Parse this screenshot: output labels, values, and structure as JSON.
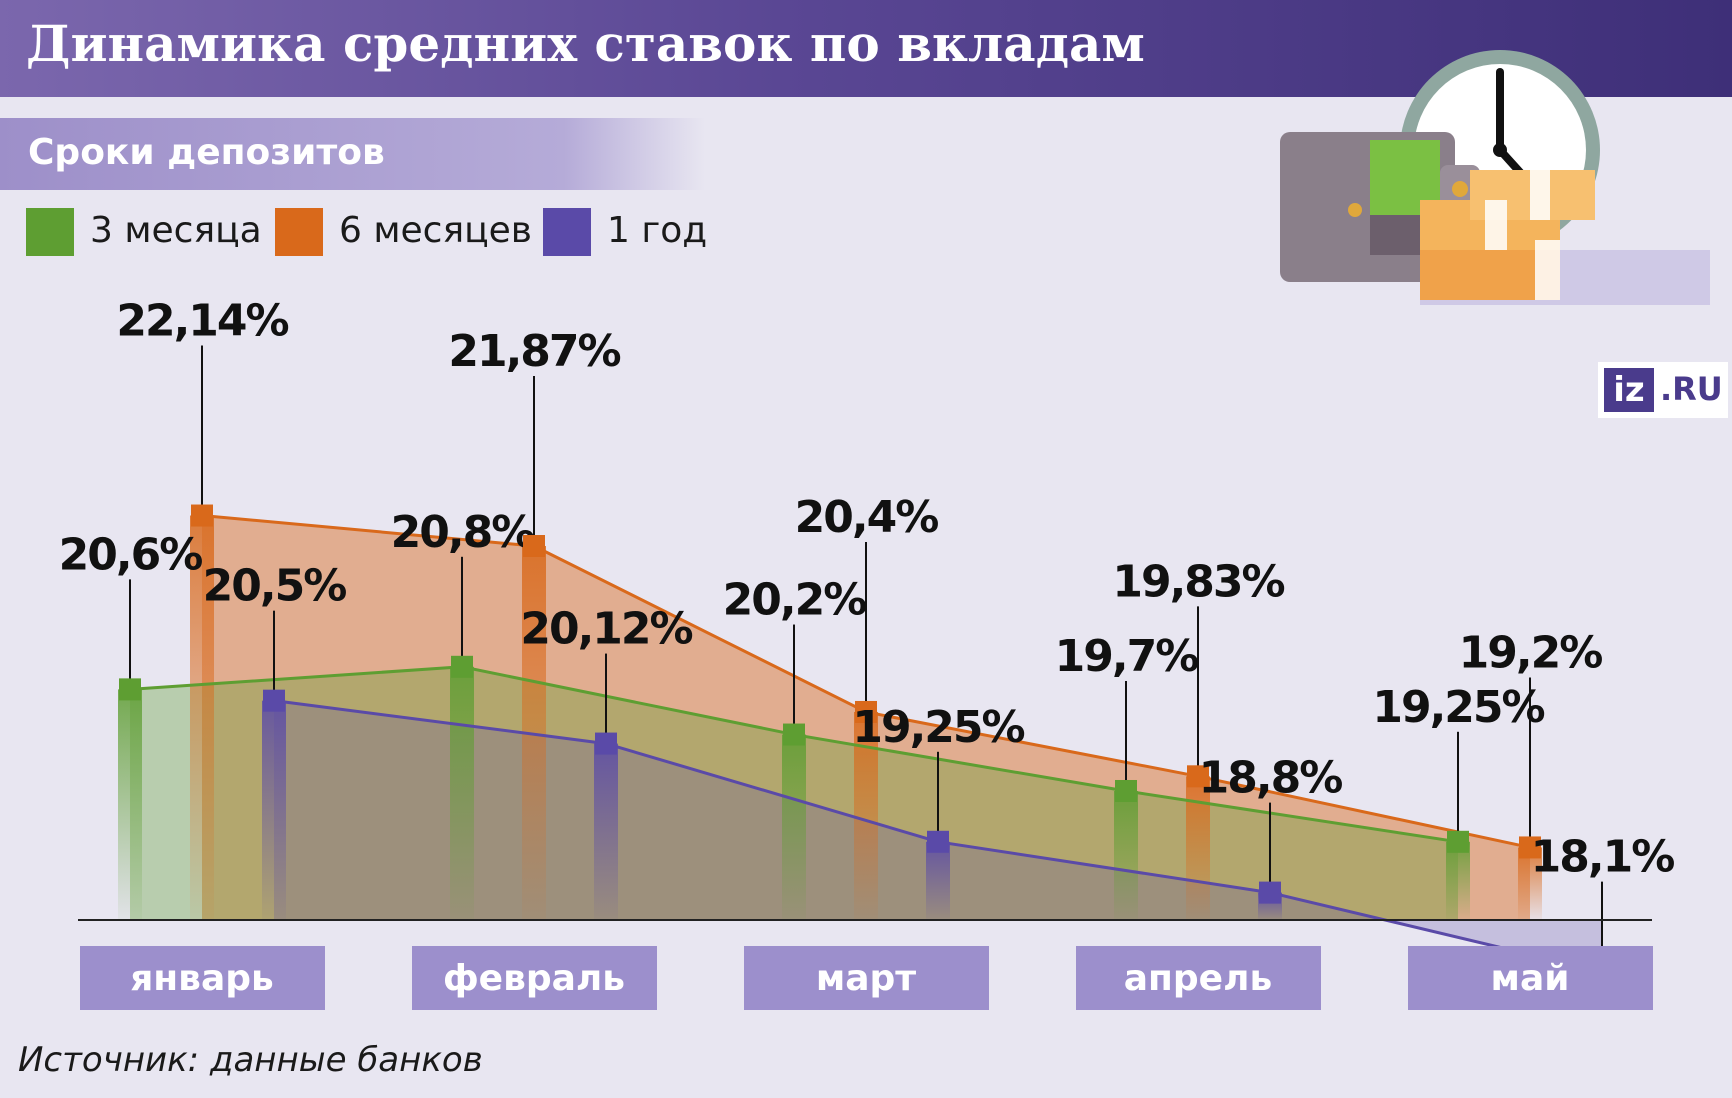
{
  "header": {
    "title": "Динамика средних ставок по вкладам",
    "subtitle": "Сроки депозитов"
  },
  "legend": [
    {
      "label": "3 месяца",
      "color": "#5e9e32"
    },
    {
      "label": "6 месяцев",
      "color": "#d9691b"
    },
    {
      "label": "1 год",
      "color": "#5a4aa8"
    }
  ],
  "source": "Источник: данные банков",
  "logo": {
    "mark": "iz",
    "text": ".RU"
  },
  "illustration": {
    "icons": [
      "wallet-icon",
      "clock-icon",
      "money-stack-icon"
    ]
  },
  "chart_data": {
    "type": "line",
    "categories": [
      "январь",
      "февраль",
      "март",
      "апрель",
      "май"
    ],
    "series": [
      {
        "name": "3 месяца",
        "color": "#5e9e32",
        "values": [
          20.6,
          20.8,
          20.2,
          19.7,
          19.25
        ],
        "labels": [
          "20,6%",
          "20,8%",
          "20,2%",
          "19,7%",
          "19,25%"
        ]
      },
      {
        "name": "6 месяцев",
        "color": "#d9691b",
        "values": [
          22.14,
          21.87,
          20.4,
          19.83,
          19.2
        ],
        "labels": [
          "22,14%",
          "21,87%",
          "20,4%",
          "19,83%",
          "19,2%"
        ]
      },
      {
        "name": "1 год",
        "color": "#5a4aa8",
        "values": [
          20.5,
          20.12,
          19.25,
          18.8,
          18.1
        ],
        "labels": [
          "20,5%",
          "20,12%",
          "19,25%",
          "18,8%",
          "18,1%"
        ]
      }
    ]
  }
}
